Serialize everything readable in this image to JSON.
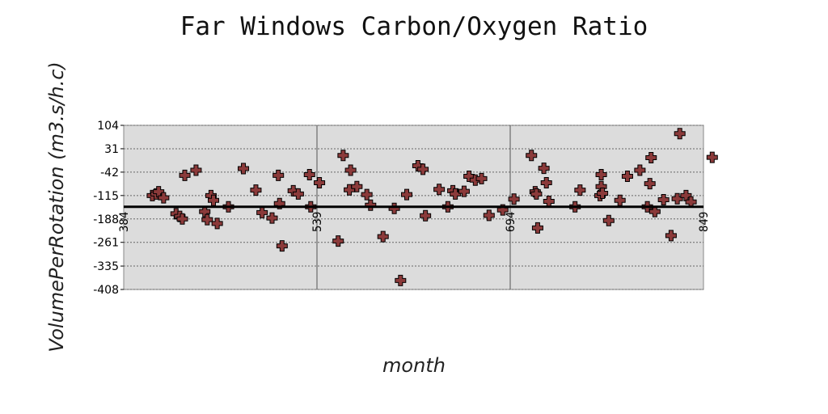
{
  "chart_data": {
    "type": "scatter",
    "title": "Far Windows Carbon/Oxygen Ratio",
    "xlabel": "month",
    "ylabel": "VolumePerRotation (m3.s/h.c)",
    "xlim": [
      384,
      849
    ],
    "ylim": [
      -408,
      104
    ],
    "x_ticks": [
      "384",
      "539",
      "694",
      "849"
    ],
    "y_ticks": [
      "104",
      "31",
      "-42",
      "-115",
      "-188",
      "-261",
      "-335",
      "-408"
    ],
    "horizontal_reference_line": -150,
    "grid": true,
    "colors": {
      "plot_background": "#dcdcdc",
      "marker": "#8b3a3a",
      "marker_edge": "#000000"
    },
    "marker": "plus",
    "points": [
      [
        407,
        -115
      ],
      [
        410,
        -110
      ],
      [
        412,
        -103
      ],
      [
        416,
        -122
      ],
      [
        426,
        -172
      ],
      [
        429,
        -180
      ],
      [
        431,
        -188
      ],
      [
        433,
        -52
      ],
      [
        442,
        -36
      ],
      [
        449,
        -165
      ],
      [
        451,
        -190
      ],
      [
        454,
        -115
      ],
      [
        456,
        -130
      ],
      [
        459,
        -202
      ],
      [
        468,
        -150
      ],
      [
        480,
        -31
      ],
      [
        490,
        -98
      ],
      [
        495,
        -168
      ],
      [
        503,
        -185
      ],
      [
        508,
        -52
      ],
      [
        509,
        -140
      ],
      [
        511,
        -272
      ],
      [
        520,
        -100
      ],
      [
        524,
        -110
      ],
      [
        533,
        -50
      ],
      [
        534,
        -150
      ],
      [
        541,
        -75
      ],
      [
        556,
        -257
      ],
      [
        560,
        10
      ],
      [
        565,
        -97
      ],
      [
        566,
        -36
      ],
      [
        571,
        -87
      ],
      [
        579,
        -112
      ],
      [
        582,
        -145
      ],
      [
        592,
        -243
      ],
      [
        601,
        -155
      ],
      [
        606,
        -380
      ],
      [
        611,
        -112
      ],
      [
        620,
        -22
      ],
      [
        624,
        -33
      ],
      [
        626,
        -178
      ],
      [
        637,
        -96
      ],
      [
        644,
        -150
      ],
      [
        648,
        -100
      ],
      [
        650,
        -110
      ],
      [
        657,
        -102
      ],
      [
        661,
        -55
      ],
      [
        666,
        -67
      ],
      [
        671,
        -62
      ],
      [
        677,
        -177
      ],
      [
        688,
        -160
      ],
      [
        697,
        -126
      ],
      [
        716,
        -216
      ],
      [
        711,
        10
      ],
      [
        714,
        -103
      ],
      [
        715,
        -110
      ],
      [
        721,
        -30
      ],
      [
        723,
        -75
      ],
      [
        725,
        -133
      ],
      [
        746,
        -150
      ],
      [
        750,
        -98
      ],
      [
        766,
        -115
      ],
      [
        767,
        -87
      ],
      [
        767,
        -50
      ],
      [
        768,
        -108
      ],
      [
        773,
        -193
      ],
      [
        782,
        -130
      ],
      [
        788,
        -55
      ],
      [
        798,
        -36
      ],
      [
        804,
        -150
      ],
      [
        806,
        -78
      ],
      [
        807,
        3
      ],
      [
        810,
        -165
      ],
      [
        817,
        -128
      ],
      [
        823,
        -240
      ],
      [
        828,
        -125
      ],
      [
        830,
        78
      ],
      [
        835,
        -115
      ],
      [
        839,
        -135
      ],
      [
        856,
        4
      ]
    ]
  }
}
